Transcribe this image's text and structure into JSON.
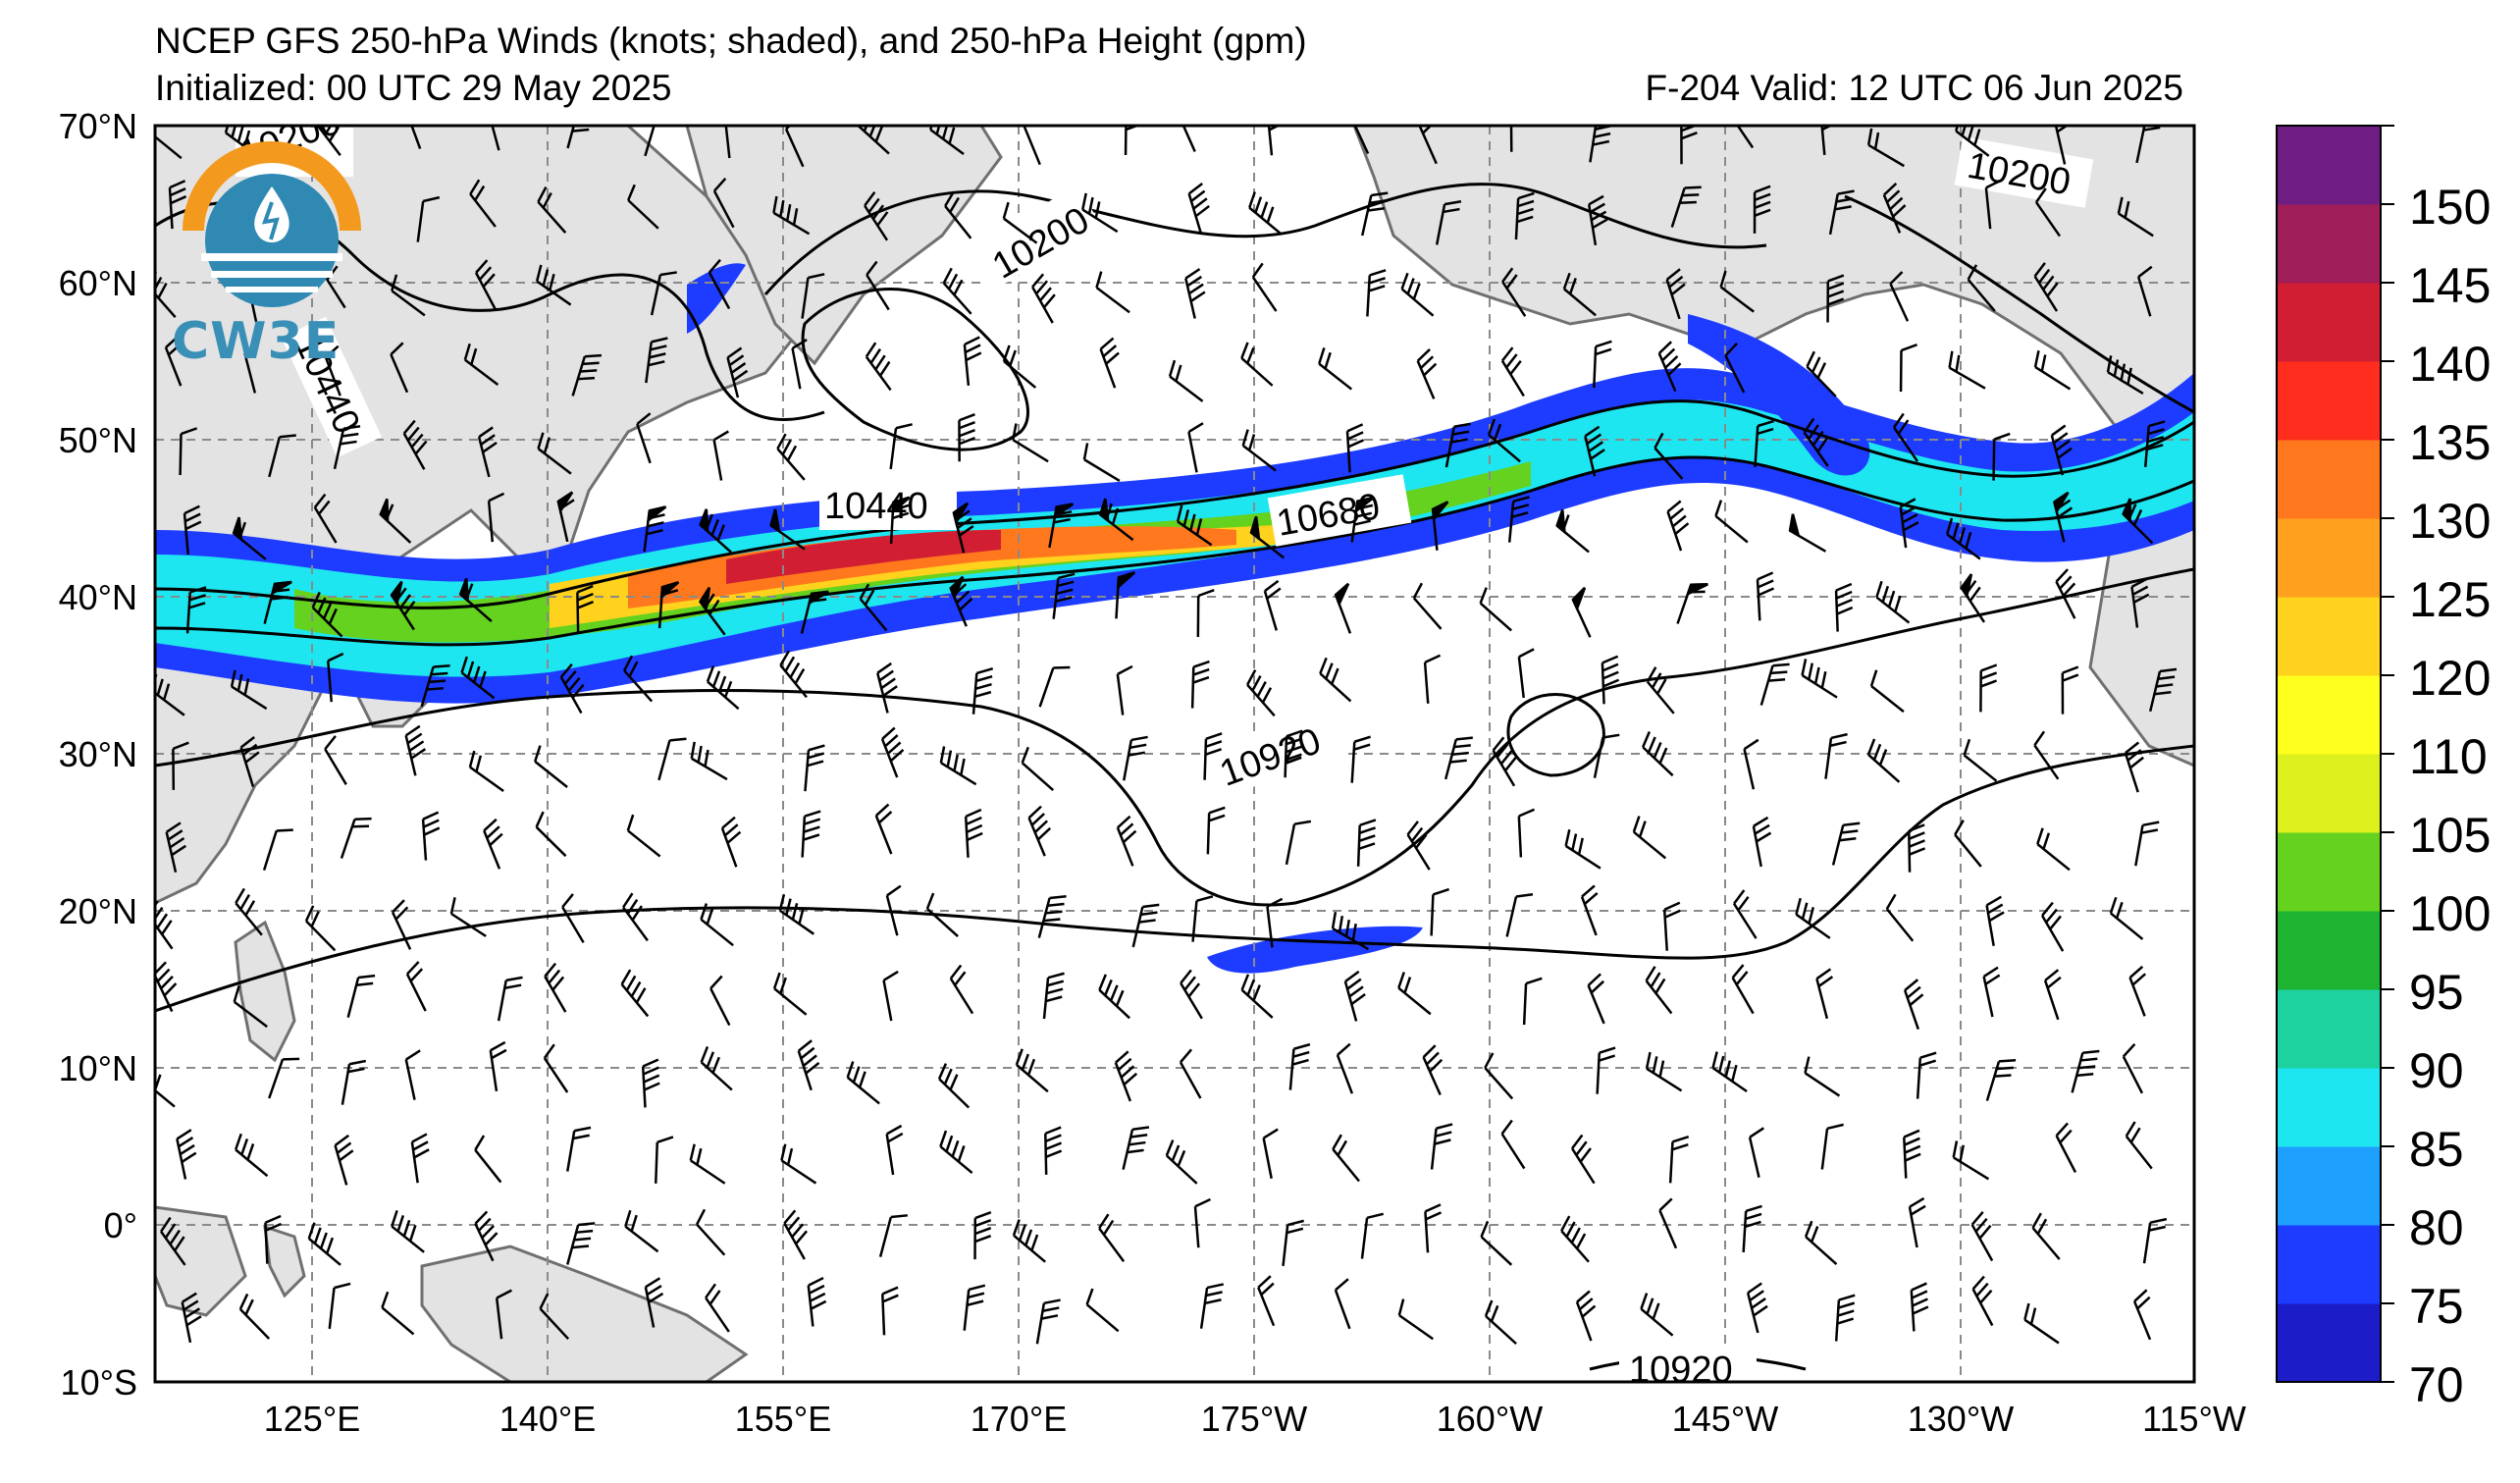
{
  "header": {
    "title": "NCEP GFS 250-hPa Winds (knots; shaded), and 250-hPa Height (gpm)",
    "initialized": "Initialized: 00 UTC 29 May 2025",
    "valid": "F-204  Valid: 12 UTC 06 Jun 2025"
  },
  "logo": {
    "text": "CW3E",
    "icon": "water-drop-sun-logo-icon"
  },
  "axes": {
    "lat_labels": [
      "70°N",
      "60°N",
      "50°N",
      "40°N",
      "30°N",
      "20°N",
      "10°N",
      "0°",
      "10°S"
    ],
    "lon_labels": [
      "125°E",
      "140°E",
      "155°E",
      "170°E",
      "175°W",
      "160°W",
      "145°W",
      "130°W",
      "115°W"
    ]
  },
  "contours": {
    "labels": [
      "10200",
      "10200",
      "10200",
      "10440",
      "10440",
      "10680",
      "10920",
      "10920"
    ]
  },
  "colorbar": {
    "ticks": [
      "150",
      "145",
      "140",
      "135",
      "130",
      "125",
      "120",
      "110",
      "105",
      "100",
      "95",
      "90",
      "85",
      "80",
      "75",
      "70"
    ],
    "levels": [
      70,
      75,
      80,
      85,
      90,
      95,
      100,
      105,
      110,
      115,
      120,
      125,
      130,
      135,
      140,
      145,
      150
    ],
    "colors": [
      "#1c1cc8",
      "#1e3cff",
      "#1ea0ff",
      "#1ee6f0",
      "#1ed2a0",
      "#1eb432",
      "#64d21e",
      "#dcf01e",
      "#ffff1e",
      "#ffd21e",
      "#ffa01e",
      "#ff781e",
      "#ff2d1e",
      "#d21e32",
      "#a01e5a",
      "#6e1e82"
    ]
  },
  "colors": {
    "land": "#e3e3e3",
    "coast": "#707070",
    "grid": "#8a8a8a"
  }
}
